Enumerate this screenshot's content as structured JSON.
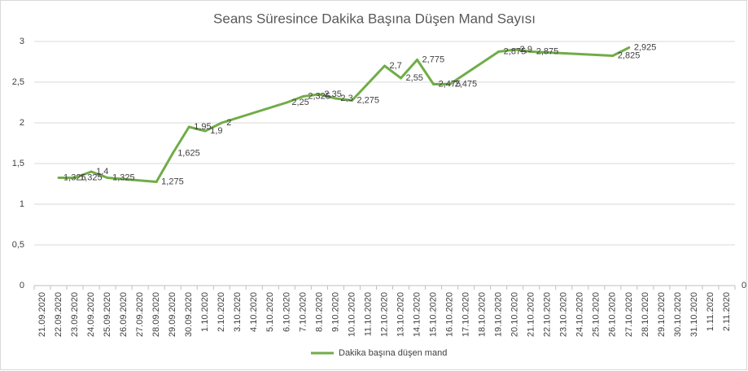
{
  "chart_data": {
    "type": "line",
    "title": "Seans Süresince Dakika Başına Düşen Mand Sayısı",
    "categories": [
      "21.09.2020",
      "22.09.2020",
      "23.09.2020",
      "24.09.2020",
      "25.09.2020",
      "26.09.2020",
      "27.09.2020",
      "28.09.2020",
      "29.09.2020",
      "30.09.2020",
      "1.10.2020",
      "2.10.2020",
      "3.10.2020",
      "4.10.2020",
      "5.10.2020",
      "6.10.2020",
      "7.10.2020",
      "8.10.2020",
      "9.10.2020",
      "10.10.2020",
      "11.10.2020",
      "12.10.2020",
      "13.10.2020",
      "14.10.2020",
      "15.10.2020",
      "16.10.2020",
      "17.10.2020",
      "18.10.2020",
      "19.10.2020",
      "20.10.2020",
      "21.10.2020",
      "22.10.2020",
      "23.10.2020",
      "24.10.2020",
      "25.10.2020",
      "26.10.2020",
      "27.10.2020",
      "28.10.2020",
      "29.10.2020",
      "30.10.2020",
      "31.10.2020",
      "1.11.2020",
      "2.11.2020"
    ],
    "series": [
      {
        "name": "Dakika başına düşen mand",
        "color": "#70ad47",
        "values": [
          null,
          1.325,
          1.325,
          1.4,
          1.325,
          null,
          null,
          1.275,
          1.625,
          1.95,
          1.9,
          2,
          null,
          null,
          null,
          2.25,
          2.325,
          2.35,
          2.3,
          2.275,
          null,
          2.7,
          2.55,
          2.775,
          2.475,
          2.475,
          null,
          null,
          2.875,
          2.9,
          2.875,
          null,
          null,
          null,
          null,
          2.825,
          2.925,
          null,
          null,
          null,
          null,
          null,
          null
        ],
        "value_labels": [
          null,
          "1,325",
          "1,325",
          "1,4",
          "1,325",
          null,
          null,
          "1,275",
          "1,625",
          "1,95",
          "1,9",
          "2",
          null,
          null,
          null,
          "2,25",
          "2,325",
          "2,35",
          "2,3",
          "2,275",
          null,
          "2,7",
          "2,55",
          "2,775",
          "2,475",
          "2,475",
          null,
          null,
          "2,875",
          "2,9",
          "2,875",
          null,
          null,
          null,
          null,
          "2,825",
          "2,925",
          null,
          null,
          null,
          null,
          null,
          null
        ]
      }
    ],
    "ylim": [
      0,
      3
    ],
    "yticks": [
      0,
      {
        "value": 0.5,
        "label": "0,5"
      },
      1,
      {
        "value": 1.5,
        "label": "1,5"
      },
      2,
      {
        "value": 2.5,
        "label": "2,5"
      },
      3
    ],
    "y2lim": [
      0,
      3
    ],
    "y2ticks": [
      0
    ],
    "grid": true,
    "legend": "bottom"
  }
}
